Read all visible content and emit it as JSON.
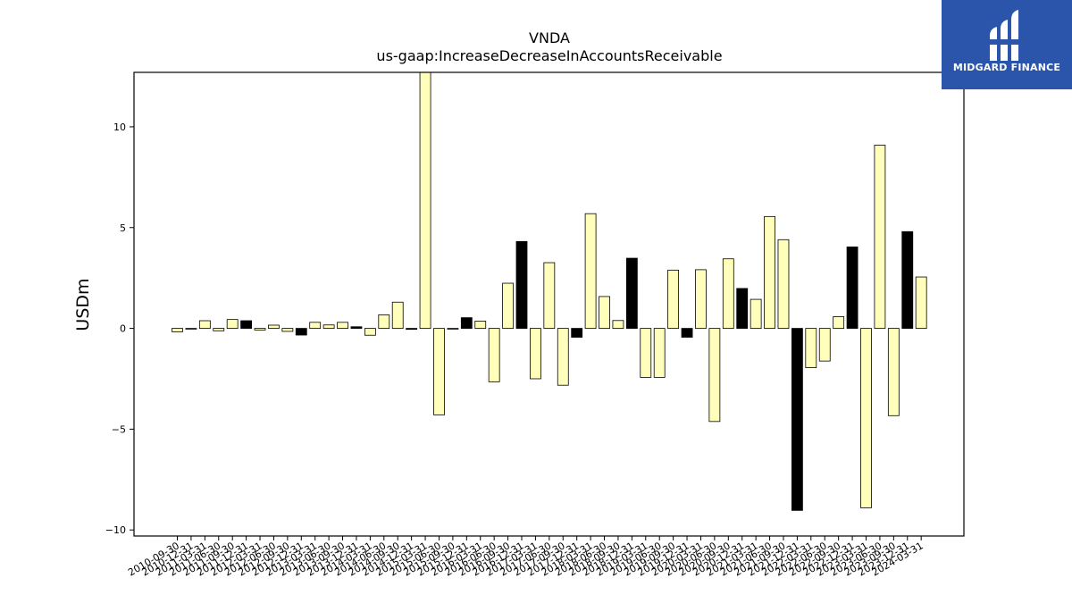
{
  "branding": {
    "logo_text": "MIDGARD FINANCE",
    "logo_icon": "midgard-logo-mark",
    "background_color": "#2a55aa"
  },
  "chart_data": {
    "type": "bar",
    "title": "VNDA",
    "subtitle": "us-gaap:IncreaseDecreaseInAccountsReceivable",
    "xlabel": "",
    "ylabel": "USDm",
    "ylim": [
      -10.3,
      12.7
    ],
    "yticks": [
      -10,
      -5,
      0,
      5,
      10
    ],
    "ytick_labels": [
      "−10",
      "−5",
      "0",
      "5",
      "10"
    ],
    "grid": false,
    "colors": {
      "quarter": "#ffffbb",
      "annual": "#000000",
      "edge": "#000000"
    },
    "categories": [
      "2010-09-30",
      "2010-12-31",
      "2011-03-31",
      "2011-06-30",
      "2011-09-30",
      "2011-12-31",
      "2012-03-31",
      "2012-06-30",
      "2012-09-30",
      "2012-12-31",
      "2013-03-31",
      "2013-06-30",
      "2013-09-30",
      "2013-12-31",
      "2014-03-31",
      "2014-06-30",
      "2014-09-30",
      "2014-12-31",
      "2015-03-31",
      "2015-06-30",
      "2015-09-30",
      "2015-12-31",
      "2016-03-31",
      "2016-06-30",
      "2016-09-30",
      "2016-12-31",
      "2017-03-31",
      "2017-06-30",
      "2017-09-30",
      "2017-12-31",
      "2018-03-31",
      "2018-06-30",
      "2018-09-30",
      "2018-12-31",
      "2019-03-31",
      "2019-06-30",
      "2019-09-30",
      "2019-12-31",
      "2020-03-31",
      "2020-06-30",
      "2020-09-30",
      "2020-12-31",
      "2021-03-31",
      "2021-06-30",
      "2021-09-30",
      "2021-12-31",
      "2022-03-31",
      "2022-06-30",
      "2022-09-30",
      "2022-12-31",
      "2023-03-31",
      "2023-06-30",
      "2023-09-30",
      "2023-12-31",
      "2024-03-31"
    ],
    "values": [
      -0.17,
      -0.04,
      0.38,
      -0.12,
      0.44,
      0.38,
      -0.08,
      0.16,
      -0.15,
      -0.33,
      0.3,
      0.17,
      0.3,
      0.08,
      -0.34,
      0.67,
      1.3,
      -0.05,
      12.7,
      -4.29,
      -0.04,
      0.53,
      0.36,
      -2.65,
      2.24,
      4.31,
      -2.5,
      3.26,
      -2.82,
      -0.44,
      5.69,
      1.58,
      0.39,
      3.48,
      -2.43,
      -2.43,
      2.89,
      -0.44,
      2.91,
      -4.62,
      3.45,
      1.98,
      1.44,
      5.55,
      4.4,
      -9.03,
      -1.95,
      -1.62,
      0.58,
      4.04,
      -8.9,
      9.09,
      -4.33,
      4.8,
      2.55
    ],
    "annual_flags": [
      0,
      0,
      0,
      0,
      0,
      1,
      0,
      0,
      0,
      1,
      0,
      0,
      0,
      1,
      0,
      0,
      0,
      1,
      0,
      0,
      0,
      1,
      0,
      0,
      0,
      1,
      0,
      0,
      0,
      1,
      0,
      0,
      0,
      1,
      0,
      0,
      0,
      1,
      0,
      0,
      0,
      1,
      0,
      0,
      0,
      1,
      0,
      0,
      0,
      1,
      0,
      0,
      0,
      1,
      0
    ]
  }
}
